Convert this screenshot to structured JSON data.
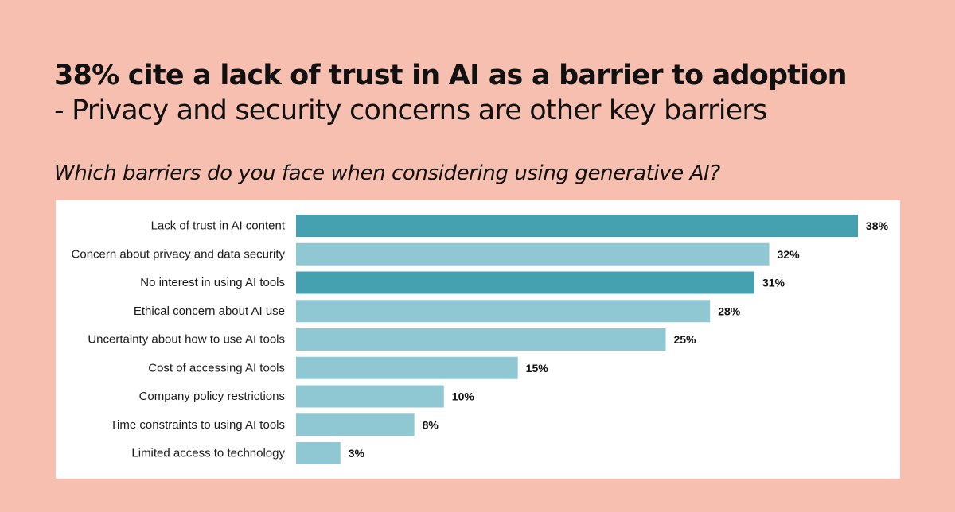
{
  "headline": "38% cite a lack of trust in AI as a barrier to adoption",
  "subheadline": "- Privacy and security concerns are other key barriers",
  "question": "Which barriers do you face when considering using generative AI?",
  "colors": {
    "background": "#f7bfaf",
    "panel": "#ffffff",
    "highlight_bar": "#45a0b0",
    "default_bar": "#8fc8d3"
  },
  "chart_data": {
    "type": "bar",
    "orientation": "horizontal",
    "categories": [
      "Lack of trust in AI content",
      "Concern about privacy and data security",
      "No interest in using AI tools",
      "Ethical concern about AI use",
      "Uncertainty about how to use AI tools",
      "Cost of accessing AI tools",
      "Company policy restrictions",
      "Time constraints to using AI tools",
      "Limited access to technology"
    ],
    "values": [
      38,
      32,
      31,
      28,
      25,
      15,
      10,
      8,
      3
    ],
    "value_labels": [
      "38%",
      "32%",
      "31%",
      "28%",
      "25%",
      "15%",
      "10%",
      "8%",
      "3%"
    ],
    "highlighted": [
      true,
      false,
      true,
      false,
      false,
      false,
      false,
      false,
      false
    ],
    "xlim": [
      0,
      38
    ],
    "grid": false,
    "legend": "none"
  }
}
